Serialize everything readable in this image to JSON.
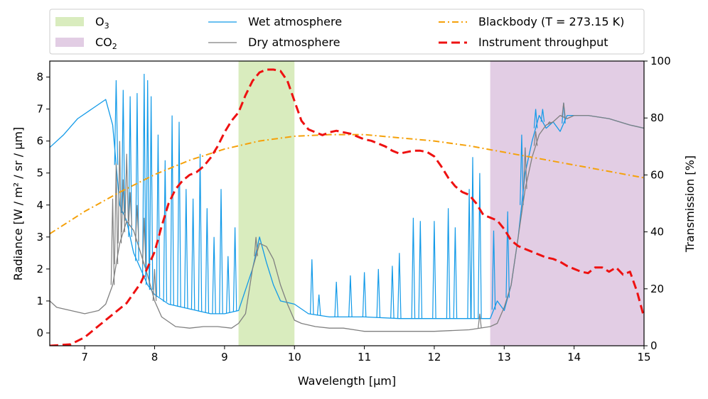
{
  "chart_data": {
    "type": "line",
    "xlabel": "Wavelength [µm]",
    "ylabel_left": "Radiance [W / m² / sr / µm]",
    "ylabel_right": "Transmission [%]",
    "xlim": [
      6.5,
      15
    ],
    "ylim_left": [
      -0.4,
      8.5
    ],
    "ylim_right": [
      0,
      100
    ],
    "x_ticks": [
      7,
      8,
      9,
      10,
      11,
      12,
      13,
      14,
      15
    ],
    "y_left_ticks": [
      0,
      1,
      2,
      3,
      4,
      5,
      6,
      7,
      8
    ],
    "y_right_ticks": [
      0,
      20,
      40,
      60,
      80,
      100
    ],
    "grid": false,
    "legend_position": "top, outside plot, three columns",
    "bands": [
      {
        "name": "O3",
        "label_base": "O",
        "label_sub": "3",
        "x_start": 9.2,
        "x_end": 10.0,
        "color": "#d9ecbe"
      },
      {
        "name": "CO2",
        "label_base": "CO",
        "label_sub": "2",
        "x_start": 12.8,
        "x_end": 15.0,
        "color": "#e2cde4"
      }
    ],
    "series": [
      {
        "name": "Wet atmosphere",
        "axis": "left",
        "color": "#129ae8",
        "style": "solid",
        "x": [
          6.5,
          6.7,
          6.9,
          7.1,
          7.3,
          7.4,
          7.5,
          7.6,
          7.7,
          7.8,
          7.9,
          8.0,
          8.2,
          8.4,
          8.6,
          8.8,
          9.0,
          9.2,
          9.4,
          9.5,
          9.6,
          9.7,
          9.8,
          10.0,
          10.2,
          10.5,
          11.0,
          11.5,
          12.0,
          12.5,
          12.8,
          12.9,
          13.0,
          13.1,
          13.2,
          13.3,
          13.4,
          13.5,
          13.6,
          13.7,
          13.8,
          13.9,
          14.0,
          14.2,
          14.5,
          14.8,
          15.0
        ],
        "y": [
          5.8,
          6.2,
          6.7,
          7.0,
          7.3,
          6.5,
          4.0,
          3.5,
          2.5,
          2.0,
          1.5,
          1.2,
          0.9,
          0.8,
          0.7,
          0.6,
          0.6,
          0.7,
          2.0,
          3.0,
          2.2,
          1.5,
          1.0,
          0.9,
          0.6,
          0.5,
          0.5,
          0.45,
          0.45,
          0.45,
          0.45,
          1.0,
          0.7,
          1.5,
          3.0,
          5.0,
          6.0,
          6.8,
          6.4,
          6.6,
          6.3,
          6.8,
          6.8,
          6.8,
          6.7,
          6.5,
          6.4
        ],
        "spikes": [
          {
            "x": 7.45,
            "y": 7.9
          },
          {
            "x": 7.55,
            "y": 7.6
          },
          {
            "x": 7.65,
            "y": 7.4
          },
          {
            "x": 7.75,
            "y": 7.5
          },
          {
            "x": 7.85,
            "y": 8.1
          },
          {
            "x": 7.9,
            "y": 7.9
          },
          {
            "x": 7.95,
            "y": 7.4
          },
          {
            "x": 8.05,
            "y": 6.2
          },
          {
            "x": 8.15,
            "y": 5.4
          },
          {
            "x": 8.25,
            "y": 6.8
          },
          {
            "x": 8.35,
            "y": 6.6
          },
          {
            "x": 8.45,
            "y": 4.5
          },
          {
            "x": 8.55,
            "y": 4.2
          },
          {
            "x": 8.65,
            "y": 5.6
          },
          {
            "x": 8.75,
            "y": 3.9
          },
          {
            "x": 8.85,
            "y": 3.0
          },
          {
            "x": 8.95,
            "y": 4.5
          },
          {
            "x": 9.05,
            "y": 2.4
          },
          {
            "x": 9.15,
            "y": 3.3
          },
          {
            "x": 10.25,
            "y": 2.3
          },
          {
            "x": 10.35,
            "y": 1.2
          },
          {
            "x": 10.6,
            "y": 1.6
          },
          {
            "x": 10.8,
            "y": 1.8
          },
          {
            "x": 11.0,
            "y": 1.9
          },
          {
            "x": 11.2,
            "y": 2.0
          },
          {
            "x": 11.4,
            "y": 2.1
          },
          {
            "x": 11.5,
            "y": 2.5
          },
          {
            "x": 11.7,
            "y": 3.6
          },
          {
            "x": 11.8,
            "y": 3.5
          },
          {
            "x": 12.0,
            "y": 3.5
          },
          {
            "x": 12.2,
            "y": 3.9
          },
          {
            "x": 12.3,
            "y": 3.3
          },
          {
            "x": 12.5,
            "y": 4.5
          },
          {
            "x": 12.55,
            "y": 5.5
          },
          {
            "x": 12.65,
            "y": 5.0
          },
          {
            "x": 12.85,
            "y": 3.2
          },
          {
            "x": 13.05,
            "y": 3.8
          },
          {
            "x": 13.25,
            "y": 6.2
          },
          {
            "x": 13.45,
            "y": 7.0
          },
          {
            "x": 13.55,
            "y": 7.0
          },
          {
            "x": 13.85,
            "y": 7.2
          }
        ]
      },
      {
        "name": "Dry atmosphere",
        "axis": "left",
        "color": "#808080",
        "style": "solid",
        "x": [
          6.5,
          6.6,
          6.8,
          7.0,
          7.2,
          7.3,
          7.4,
          7.5,
          7.6,
          7.7,
          7.8,
          7.9,
          8.0,
          8.1,
          8.3,
          8.5,
          8.7,
          8.9,
          9.1,
          9.2,
          9.3,
          9.4,
          9.5,
          9.6,
          9.7,
          9.8,
          9.9,
          10.0,
          10.1,
          10.3,
          10.5,
          10.7,
          11.0,
          11.5,
          12.0,
          12.5,
          12.8,
          12.9,
          13.0,
          13.1,
          13.2,
          13.3,
          13.4,
          13.5,
          13.6,
          13.7,
          13.8,
          13.9,
          14.0,
          14.2,
          14.5,
          14.8,
          15.0
        ],
        "y": [
          1.0,
          0.8,
          0.7,
          0.6,
          0.7,
          0.9,
          1.5,
          2.8,
          3.5,
          3.2,
          2.5,
          1.8,
          1.0,
          0.5,
          0.2,
          0.15,
          0.2,
          0.2,
          0.15,
          0.3,
          0.6,
          2.0,
          2.8,
          2.7,
          2.3,
          1.5,
          0.9,
          0.4,
          0.3,
          0.2,
          0.15,
          0.15,
          0.05,
          0.05,
          0.05,
          0.1,
          0.2,
          0.3,
          0.8,
          1.5,
          3.0,
          4.5,
          5.5,
          6.2,
          6.5,
          6.6,
          6.8,
          6.7,
          6.8,
          6.8,
          6.7,
          6.5,
          6.4
        ],
        "spikes": [
          {
            "x": 7.4,
            "y": 4.2
          },
          {
            "x": 7.45,
            "y": 5.3
          },
          {
            "x": 7.5,
            "y": 6.0
          },
          {
            "x": 7.55,
            "y": 4.8
          },
          {
            "x": 7.6,
            "y": 5.6
          },
          {
            "x": 7.65,
            "y": 4.4
          },
          {
            "x": 7.75,
            "y": 4.0
          },
          {
            "x": 7.85,
            "y": 3.6
          },
          {
            "x": 8.0,
            "y": 2.0
          },
          {
            "x": 9.45,
            "y": 3.0
          },
          {
            "x": 12.65,
            "y": 0.6
          },
          {
            "x": 13.3,
            "y": 5.8
          },
          {
            "x": 13.45,
            "y": 6.3
          },
          {
            "x": 13.65,
            "y": 6.6
          },
          {
            "x": 13.85,
            "y": 7.2
          }
        ]
      },
      {
        "name": "Blackbody (T = 273.15 K)",
        "axis": "left",
        "color": "#f5a10a",
        "style": "dashdot",
        "x": [
          6.5,
          7.0,
          7.5,
          8.0,
          8.5,
          9.0,
          9.5,
          10.0,
          10.5,
          11.0,
          11.5,
          12.0,
          12.5,
          13.0,
          13.5,
          14.0,
          14.5,
          15.0
        ],
        "y": [
          3.1,
          3.8,
          4.4,
          4.95,
          5.4,
          5.75,
          6.0,
          6.15,
          6.2,
          6.2,
          6.1,
          6.0,
          5.85,
          5.65,
          5.45,
          5.25,
          5.05,
          4.85
        ]
      },
      {
        "name": "Instrument throughput",
        "axis": "right",
        "color": "#ee1111",
        "style": "dashed",
        "x": [
          6.5,
          6.8,
          7.0,
          7.2,
          7.4,
          7.6,
          7.8,
          8.0,
          8.1,
          8.2,
          8.3,
          8.4,
          8.5,
          8.6,
          8.7,
          8.8,
          8.9,
          9.0,
          9.1,
          9.2,
          9.3,
          9.4,
          9.5,
          9.6,
          9.7,
          9.8,
          9.9,
          10.0,
          10.1,
          10.2,
          10.3,
          10.4,
          10.5,
          10.6,
          10.7,
          10.8,
          10.9,
          11.0,
          11.1,
          11.2,
          11.3,
          11.4,
          11.5,
          11.6,
          11.7,
          11.8,
          11.9,
          12.0,
          12.1,
          12.2,
          12.3,
          12.4,
          12.5,
          12.6,
          12.7,
          12.8,
          12.9,
          13.0,
          13.1,
          13.2,
          13.3,
          13.4,
          13.5,
          13.6,
          13.7,
          13.8,
          13.9,
          14.0,
          14.1,
          14.2,
          14.3,
          14.4,
          14.5,
          14.6,
          14.7,
          14.8,
          14.9,
          15.0
        ],
        "y": [
          0,
          0.5,
          3,
          7,
          11,
          15,
          22,
          33,
          42,
          50,
          55,
          58,
          60,
          61,
          63,
          66,
          70,
          75,
          79,
          82,
          88,
          93,
          96,
          97,
          97,
          96.5,
          93,
          86,
          79,
          76,
          75,
          74,
          75,
          75.5,
          75,
          74.5,
          73.5,
          72.5,
          72,
          71,
          70,
          68.5,
          67.5,
          68,
          68.5,
          68.5,
          68,
          66.5,
          63,
          59,
          56,
          54,
          53,
          50,
          46,
          45,
          44,
          41,
          37,
          35,
          34,
          33,
          32,
          31,
          30.5,
          29.5,
          28,
          27,
          26,
          25.5,
          27.5,
          27.5,
          26,
          27.5,
          25,
          26,
          19,
          10
        ]
      }
    ],
    "legend": [
      {
        "type": "band",
        "ref": 0
      },
      {
        "type": "series",
        "ref": 0
      },
      {
        "type": "series",
        "ref": 2
      },
      {
        "type": "band",
        "ref": 1
      },
      {
        "type": "series",
        "ref": 1
      },
      {
        "type": "series",
        "ref": 3
      }
    ]
  }
}
